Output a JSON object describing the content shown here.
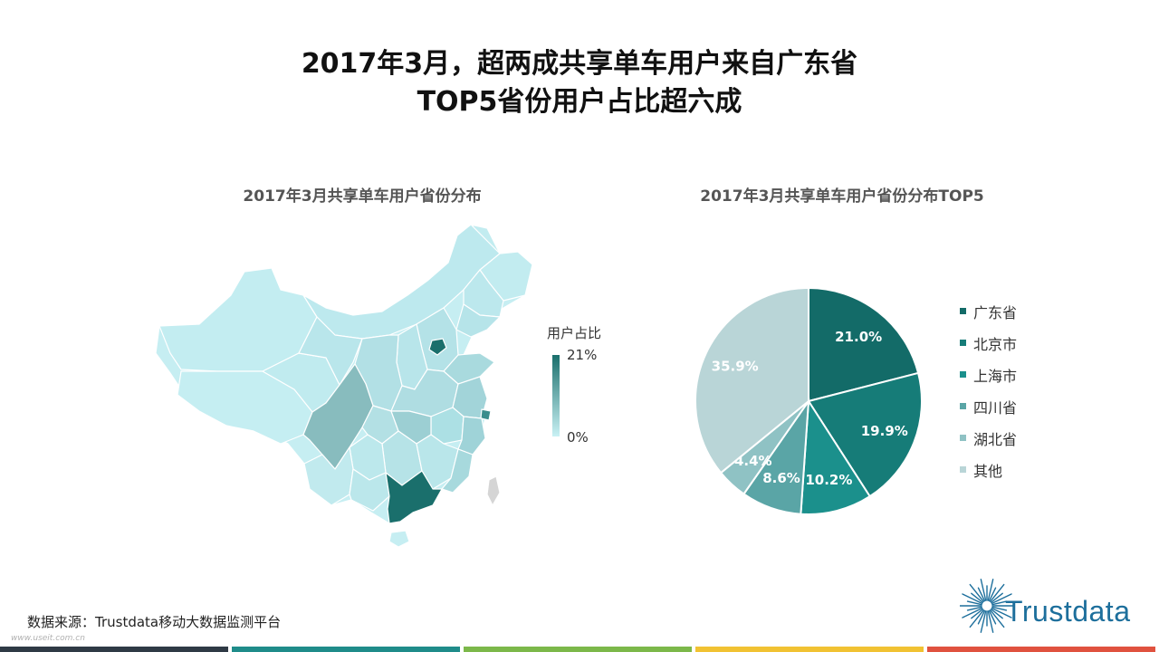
{
  "title_line1": "2017年3月，超两成共享单车用户来自广东省",
  "title_line2": "TOP5省份用户占比超六成",
  "map": {
    "title": "2017年3月共享单车用户省份分布",
    "legend_title": "用户占比",
    "scale_max": "21%",
    "scale_min": "0%",
    "colors": {
      "high": "#1a6f6c",
      "low": "#c9f1f4"
    }
  },
  "chart_data": {
    "type": "pie",
    "title": "2017年3月共享单车用户省份分布TOP5",
    "categories": [
      "广东省",
      "北京市",
      "上海市",
      "四川省",
      "湖北省",
      "其他"
    ],
    "values": [
      21.0,
      19.9,
      10.2,
      8.6,
      4.4,
      35.9
    ],
    "labels": [
      "21.0%",
      "19.9%",
      "10.2%",
      "8.6%",
      "4.4%",
      "35.9%"
    ],
    "colors": [
      "#136b68",
      "#167c78",
      "#1b908c",
      "#5aa5a6",
      "#8fc2c4",
      "#b9d5d7"
    ],
    "legend_position": "right"
  },
  "source": "数据来源：Trustdata移动大数据监测平台",
  "watermark": "www.useit.com.cn",
  "logo": {
    "text": "Trustdata",
    "color": "#1d6f9c"
  },
  "footer_colors": [
    "#2f3a45",
    "#1f8c8a",
    "#7cb84a",
    "#f1c232",
    "#e0523f"
  ]
}
